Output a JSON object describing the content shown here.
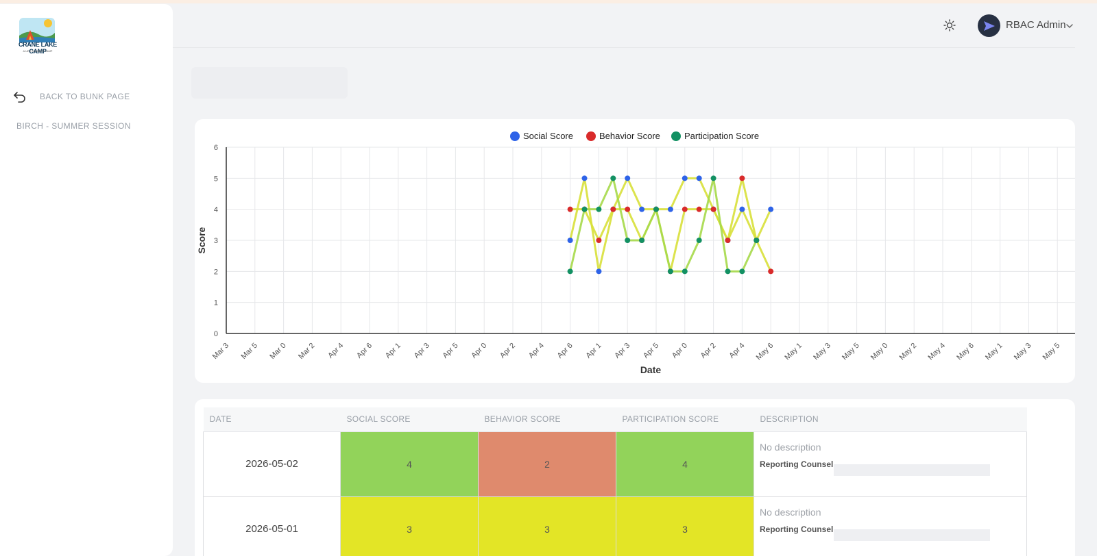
{
  "sidebar": {
    "logo_text": "CRANE LAKE CAMP",
    "logo_sub": "A URJ SUMMER CAMP",
    "back_label": "BACK TO BUNK PAGE",
    "session_label": "BIRCH - SUMMER SESSION"
  },
  "header": {
    "user_name": "RBAC Admin"
  },
  "colors": {
    "social": "#2e63e8",
    "behavior": "#d92b2b",
    "participation": "#139163",
    "score_green": "#92d35a",
    "score_orange": "#df8a6d",
    "score_yellow": "#e3e526"
  },
  "chart_data": {
    "type": "line",
    "xlabel": "Date",
    "ylabel": "Score",
    "ylim": [
      0,
      6
    ],
    "yticks": [
      "0",
      "1",
      "2",
      "3",
      "4",
      "5",
      "6"
    ],
    "grid": true,
    "legend_position": "top",
    "x_tick_labels": [
      "Mar 3",
      "Mar 5",
      "Mar 0",
      "Mar 2",
      "Apr 4",
      "Apr 6",
      "Apr 1",
      "Apr 3",
      "Apr 5",
      "Apr 0",
      "Apr 2",
      "Apr 4",
      "Apr 6",
      "Apr 1",
      "Apr 3",
      "Apr 5",
      "Apr 0",
      "Apr 2",
      "Apr 4",
      "May 6",
      "May 1",
      "May 3",
      "May 5",
      "May 0",
      "May 2",
      "May 4",
      "May 6",
      "May 1",
      "May 3",
      "May 5"
    ],
    "point_positions": [
      12,
      12.5,
      13,
      13.5,
      14,
      14.5,
      15,
      15.5,
      16,
      16.5,
      17,
      17.5,
      18,
      18.5,
      19,
      19.5
    ],
    "series": [
      {
        "name": "Social Score",
        "values": [
          3,
          5,
          2,
          4,
          5,
          4,
          4,
          4,
          5,
          5,
          4,
          3,
          4,
          3,
          4,
          null
        ]
      },
      {
        "name": "Behavior Score",
        "values": [
          4,
          4,
          3,
          4,
          4,
          3,
          4,
          2,
          4,
          4,
          4,
          3,
          5,
          3,
          2,
          null
        ]
      },
      {
        "name": "Participation Score",
        "values": [
          2,
          4,
          4,
          5,
          3,
          3,
          4,
          2,
          2,
          3,
          5,
          2,
          2,
          3,
          null,
          null
        ]
      }
    ]
  },
  "table": {
    "headers": [
      "DATE",
      "SOCIAL SCORE",
      "BEHAVIOR SCORE",
      "PARTICIPATION SCORE",
      "DESCRIPTION"
    ],
    "rows": [
      {
        "date": "2026-05-02",
        "social": "4",
        "behavior": "2",
        "participation": "4",
        "description": "No description",
        "counselor_label": "Reporting Counsel"
      },
      {
        "date": "2026-05-01",
        "social": "3",
        "behavior": "3",
        "participation": "3",
        "description": "No description",
        "counselor_label": "Reporting Counsel"
      }
    ]
  }
}
